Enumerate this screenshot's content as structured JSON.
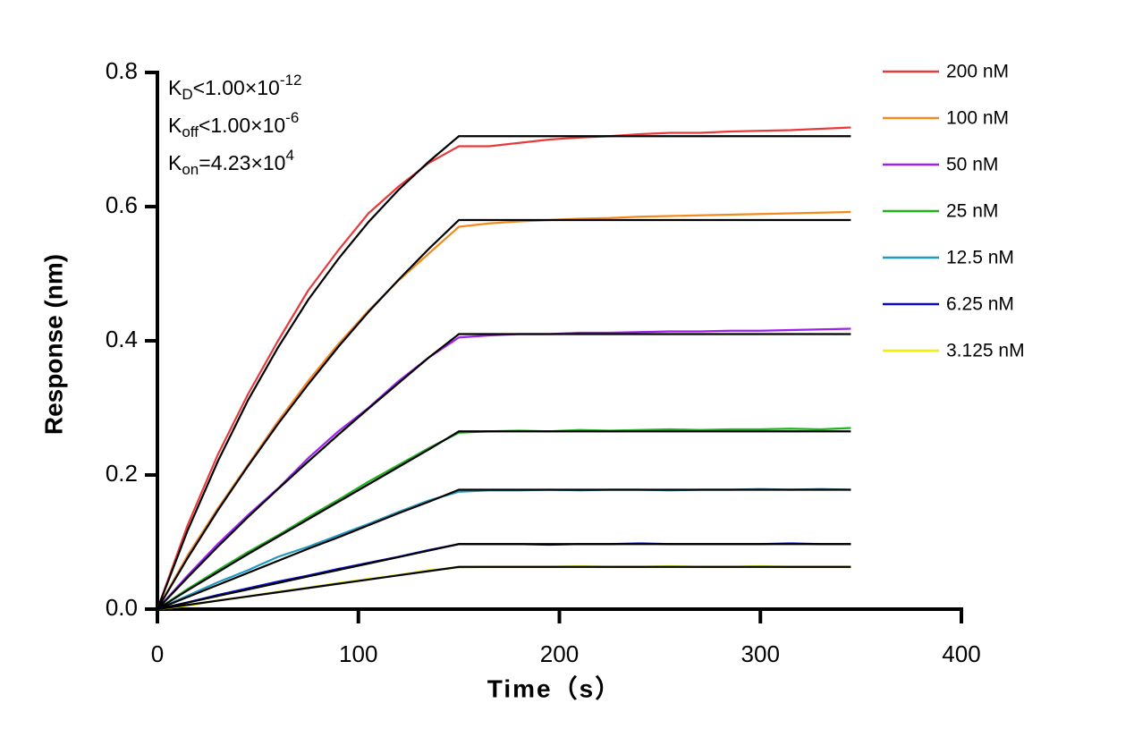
{
  "chart_data": {
    "type": "line",
    "x_label": "Time（s）",
    "y_label": "Response (nm)",
    "xlim": [
      0,
      400
    ],
    "ylim": [
      0,
      0.8
    ],
    "xticks": [
      0,
      100,
      200,
      300,
      400
    ],
    "yticks": [
      {
        "value": 0,
        "label": "0.0"
      },
      0.2,
      0.4,
      0.6,
      0.8
    ],
    "legend": "right",
    "fit_color": "#000000",
    "annotations": [
      {
        "main": "K",
        "sub": "D",
        "rest": "<1.00×10",
        "sup": "-12"
      },
      {
        "main": "K",
        "sub": "off",
        "rest": "<1.00×10",
        "sup": "-6"
      },
      {
        "main": "K",
        "sub": "on",
        "rest": "=4.23×10",
        "sup": "4"
      }
    ],
    "x": [
      0,
      15,
      30,
      45,
      60,
      75,
      90,
      105,
      120,
      135,
      150,
      165,
      180,
      195,
      210,
      225,
      240,
      255,
      270,
      285,
      300,
      315,
      330,
      345
    ],
    "series": [
      {
        "name": "200 nM",
        "color": "#e8393b",
        "values": [
          0,
          0.125,
          0.23,
          0.32,
          0.4,
          0.475,
          0.535,
          0.59,
          0.63,
          0.665,
          0.69,
          0.69,
          0.695,
          0.7,
          0.703,
          0.705,
          0.708,
          0.71,
          0.71,
          0.712,
          0.713,
          0.714,
          0.716,
          0.718
        ],
        "fit_values": [
          0,
          0.117,
          0.22,
          0.311,
          0.39,
          0.461,
          0.522,
          0.577,
          0.625,
          0.667,
          0.705,
          0.705,
          0.705,
          0.705,
          0.705,
          0.705,
          0.705,
          0.705,
          0.705,
          0.705,
          0.705,
          0.705,
          0.705,
          0.705
        ]
      },
      {
        "name": "100 nM",
        "color": "#f28a1c",
        "values": [
          0,
          0.08,
          0.15,
          0.215,
          0.28,
          0.34,
          0.395,
          0.445,
          0.49,
          0.53,
          0.57,
          0.575,
          0.578,
          0.58,
          0.582,
          0.583,
          0.585,
          0.586,
          0.587,
          0.588,
          0.589,
          0.59,
          0.591,
          0.592
        ],
        "fit_values": [
          0,
          0.076,
          0.147,
          0.213,
          0.276,
          0.335,
          0.391,
          0.443,
          0.491,
          0.537,
          0.58,
          0.58,
          0.58,
          0.58,
          0.58,
          0.58,
          0.58,
          0.58,
          0.58,
          0.58,
          0.58,
          0.58,
          0.58,
          0.58
        ]
      },
      {
        "name": "50 nM",
        "color": "#a020f0",
        "values": [
          0,
          0.05,
          0.097,
          0.14,
          0.18,
          0.225,
          0.265,
          0.3,
          0.34,
          0.375,
          0.405,
          0.408,
          0.41,
          0.41,
          0.412,
          0.412,
          0.413,
          0.414,
          0.414,
          0.415,
          0.415,
          0.416,
          0.417,
          0.418
        ],
        "fit_values": [
          0,
          0.047,
          0.093,
          0.137,
          0.179,
          0.22,
          0.26,
          0.299,
          0.337,
          0.375,
          0.41,
          0.41,
          0.41,
          0.41,
          0.41,
          0.41,
          0.41,
          0.41,
          0.41,
          0.41,
          0.41,
          0.41,
          0.41,
          0.41
        ]
      },
      {
        "name": "25 nM",
        "color": "#1db31d",
        "values": [
          0,
          0.03,
          0.058,
          0.085,
          0.11,
          0.137,
          0.163,
          0.19,
          0.215,
          0.24,
          0.263,
          0.265,
          0.266,
          0.265,
          0.267,
          0.266,
          0.267,
          0.268,
          0.267,
          0.268,
          0.268,
          0.269,
          0.268,
          0.27
        ],
        "fit_values": [
          0,
          0.028,
          0.055,
          0.082,
          0.108,
          0.134,
          0.16,
          0.186,
          0.212,
          0.238,
          0.265,
          0.265,
          0.265,
          0.265,
          0.265,
          0.265,
          0.265,
          0.265,
          0.265,
          0.265,
          0.265,
          0.265,
          0.265,
          0.265
        ]
      },
      {
        "name": "12.5 nM",
        "color": "#1e9ac0",
        "values": [
          0,
          0.02,
          0.04,
          0.058,
          0.078,
          0.093,
          0.11,
          0.127,
          0.145,
          0.162,
          0.175,
          0.177,
          0.177,
          0.178,
          0.177,
          0.178,
          0.178,
          0.177,
          0.178,
          0.178,
          0.179,
          0.178,
          0.179,
          0.178
        ],
        "fit_values": [
          0,
          0.018,
          0.036,
          0.054,
          0.072,
          0.09,
          0.107,
          0.125,
          0.143,
          0.16,
          0.178,
          0.178,
          0.178,
          0.178,
          0.178,
          0.178,
          0.178,
          0.178,
          0.178,
          0.178,
          0.178,
          0.178,
          0.178,
          0.178
        ]
      },
      {
        "name": "6.25 nM",
        "color": "#0a0ad0",
        "values": [
          0,
          0.01,
          0.021,
          0.031,
          0.041,
          0.05,
          0.06,
          0.069,
          0.078,
          0.088,
          0.097,
          0.097,
          0.097,
          0.096,
          0.097,
          0.097,
          0.098,
          0.097,
          0.097,
          0.097,
          0.097,
          0.098,
          0.097,
          0.097
        ],
        "fit_values": [
          0,
          0.0098,
          0.0196,
          0.0293,
          0.039,
          0.0487,
          0.0583,
          0.068,
          0.0776,
          0.0873,
          0.097,
          0.097,
          0.097,
          0.097,
          0.097,
          0.097,
          0.097,
          0.097,
          0.097,
          0.097,
          0.097,
          0.097,
          0.097,
          0.097
        ]
      },
      {
        "name": "3.125 nM",
        "color": "#f0f000",
        "values": [
          0,
          0.005,
          0.013,
          0.019,
          0.026,
          0.032,
          0.039,
          0.045,
          0.051,
          0.058,
          0.062,
          0.063,
          0.063,
          0.063,
          0.064,
          0.063,
          0.063,
          0.064,
          0.063,
          0.063,
          0.064,
          0.063,
          0.063,
          0.063
        ],
        "fit_values": [
          0,
          0.0063,
          0.0126,
          0.0189,
          0.0252,
          0.0315,
          0.0378,
          0.0441,
          0.0504,
          0.0567,
          0.063,
          0.063,
          0.063,
          0.063,
          0.063,
          0.063,
          0.063,
          0.063,
          0.063,
          0.063,
          0.063,
          0.063,
          0.063,
          0.063
        ]
      }
    ]
  }
}
